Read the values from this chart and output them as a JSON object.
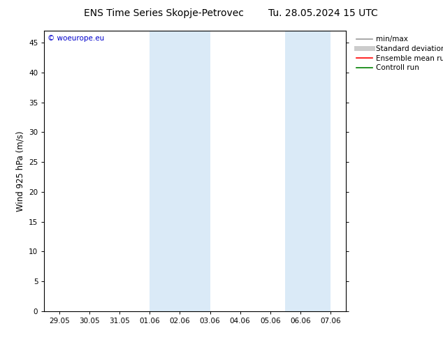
{
  "title_left": "ENS Time Series Skopje-Petrovec",
  "title_right": "Tu. 28.05.2024 15 UTC",
  "ylabel": "Wind 925 hPa (m/s)",
  "watermark": "© woeurope.eu",
  "background_color": "#ffffff",
  "plot_bg_color": "#ffffff",
  "xlabel_ticks": [
    "29.05",
    "30.05",
    "31.05",
    "01.06",
    "02.06",
    "03.06",
    "04.06",
    "05.06",
    "06.06",
    "07.06"
  ],
  "x_values": [
    0,
    1,
    2,
    3,
    4,
    5,
    6,
    7,
    8,
    9
  ],
  "ylim": [
    0,
    47
  ],
  "yticks": [
    0,
    5,
    10,
    15,
    20,
    25,
    30,
    35,
    40,
    45
  ],
  "shaded_bands": [
    {
      "x_start": 3,
      "x_end": 5,
      "color": "#daeaf7"
    },
    {
      "x_start": 7.5,
      "x_end": 9,
      "color": "#daeaf7"
    }
  ],
  "legend_items": [
    {
      "label": "min/max",
      "color": "#999999",
      "lw": 1.2,
      "style": "solid"
    },
    {
      "label": "Standard deviation",
      "color": "#cccccc",
      "lw": 5,
      "style": "solid"
    },
    {
      "label": "Ensemble mean run",
      "color": "#ff0000",
      "lw": 1.2,
      "style": "solid"
    },
    {
      "label": "Controll run",
      "color": "#008000",
      "lw": 1.2,
      "style": "solid"
    }
  ],
  "title_fontsize": 10,
  "tick_fontsize": 7.5,
  "ylabel_fontsize": 8.5,
  "legend_fontsize": 7.5,
  "watermark_color": "#0000cc",
  "border_color": "#000000",
  "xlim": [
    -0.5,
    9.5
  ]
}
